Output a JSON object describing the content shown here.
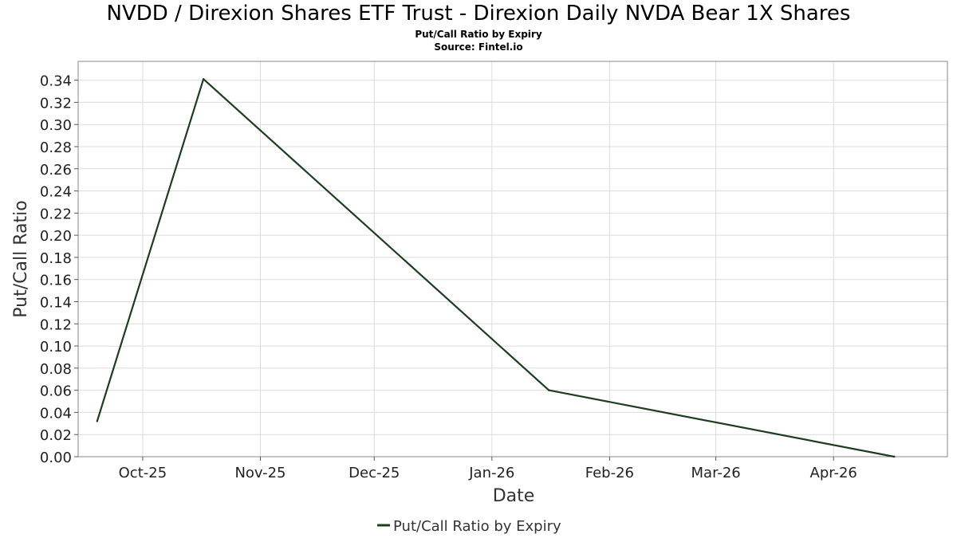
{
  "title": "NVDD / Direxion Shares ETF Trust - Direxion Daily NVDA Bear 1X Shares",
  "subtitle": "Put/Call Ratio by Expiry",
  "source": "Source: Fintel.io",
  "colors": {
    "line": "#1d3d1f",
    "grid": "#dcdcdc",
    "frame": "#888888"
  },
  "chart_data": {
    "type": "line",
    "title": "NVDD / Direxion Shares ETF Trust - Direxion Daily NVDA Bear 1X Shares",
    "subtitle": "Put/Call Ratio by Expiry",
    "xlabel": "Date",
    "ylabel": "Put/Call Ratio",
    "x_type": "date",
    "xlim": [
      "2025-09-14",
      "2026-05-01"
    ],
    "ylim": [
      0,
      0.357
    ],
    "x_ticks": [
      {
        "date": "2025-10-01",
        "label": "Oct-25"
      },
      {
        "date": "2025-11-01",
        "label": "Nov-25"
      },
      {
        "date": "2025-12-01",
        "label": "Dec-25"
      },
      {
        "date": "2026-01-01",
        "label": "Jan-26"
      },
      {
        "date": "2026-02-01",
        "label": "Feb-26"
      },
      {
        "date": "2026-03-01",
        "label": "Mar-26"
      },
      {
        "date": "2026-04-01",
        "label": "Apr-26"
      }
    ],
    "y_ticks": [
      0.0,
      0.02,
      0.04,
      0.06,
      0.08,
      0.1,
      0.12,
      0.14,
      0.16,
      0.18,
      0.2,
      0.22,
      0.24,
      0.26,
      0.28,
      0.3,
      0.32,
      0.34
    ],
    "y_tick_labels": [
      "0.00",
      "0.02",
      "0.04",
      "0.06",
      "0.08",
      "0.10",
      "0.12",
      "0.14",
      "0.16",
      "0.18",
      "0.20",
      "0.22",
      "0.24",
      "0.26",
      "0.28",
      "0.30",
      "0.32",
      "0.34"
    ],
    "grid": true,
    "legend_position": "bottom-center",
    "series": [
      {
        "name": "Put/Call Ratio by Expiry",
        "color": "#1d3d1f",
        "points": [
          {
            "x": "2025-09-19",
            "y": 0.032
          },
          {
            "x": "2025-10-17",
            "y": 0.341
          },
          {
            "x": "2026-01-16",
            "y": 0.06
          },
          {
            "x": "2026-04-17",
            "y": 0.0
          }
        ]
      }
    ]
  }
}
